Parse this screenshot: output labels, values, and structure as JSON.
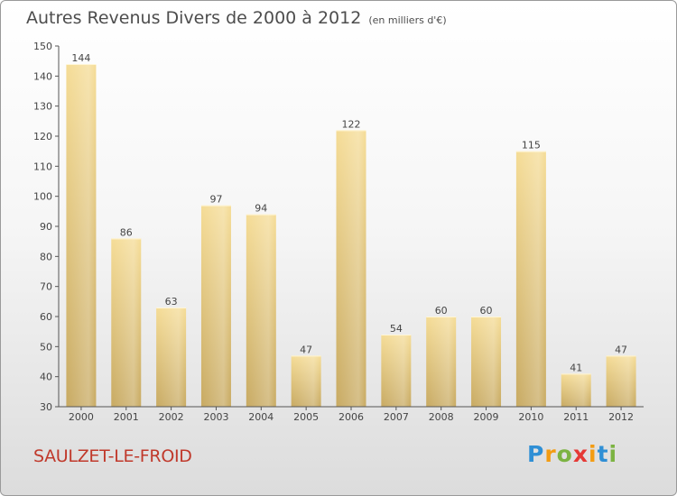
{
  "header": {
    "title": "Autres Revenus Divers de 2000 à 2012",
    "subtitle": "(en milliers d'€)"
  },
  "footer": {
    "commune": "SAULZET-LE-FROID",
    "logo_letters": [
      "P",
      "r",
      "o",
      "x",
      "i",
      "t",
      "i"
    ],
    "logo_colors": [
      "#2f8fd5",
      "#f39c12",
      "#7cb342",
      "#e53935",
      "#f39c12",
      "#2f8fd5",
      "#7cb342"
    ]
  },
  "colors": {
    "bar_light": "#f5dc96",
    "bar_dark": "#c8aa62",
    "title": "#4d4d4d",
    "commune": "#c0392b"
  },
  "chart_data": {
    "type": "bar",
    "title": "Autres Revenus Divers de 2000 à 2012",
    "subtitle": "(en milliers d'€)",
    "categories": [
      "2000",
      "2001",
      "2002",
      "2003",
      "2004",
      "2005",
      "2006",
      "2007",
      "2008",
      "2009",
      "2010",
      "2011",
      "2012"
    ],
    "values": [
      144,
      86,
      63,
      97,
      94,
      47,
      122,
      54,
      60,
      60,
      115,
      41,
      47
    ],
    "ylim": [
      30,
      150
    ],
    "yticks": [
      30,
      40,
      50,
      60,
      70,
      80,
      90,
      100,
      110,
      120,
      130,
      140,
      150
    ],
    "grid": false,
    "data_labels": true
  }
}
